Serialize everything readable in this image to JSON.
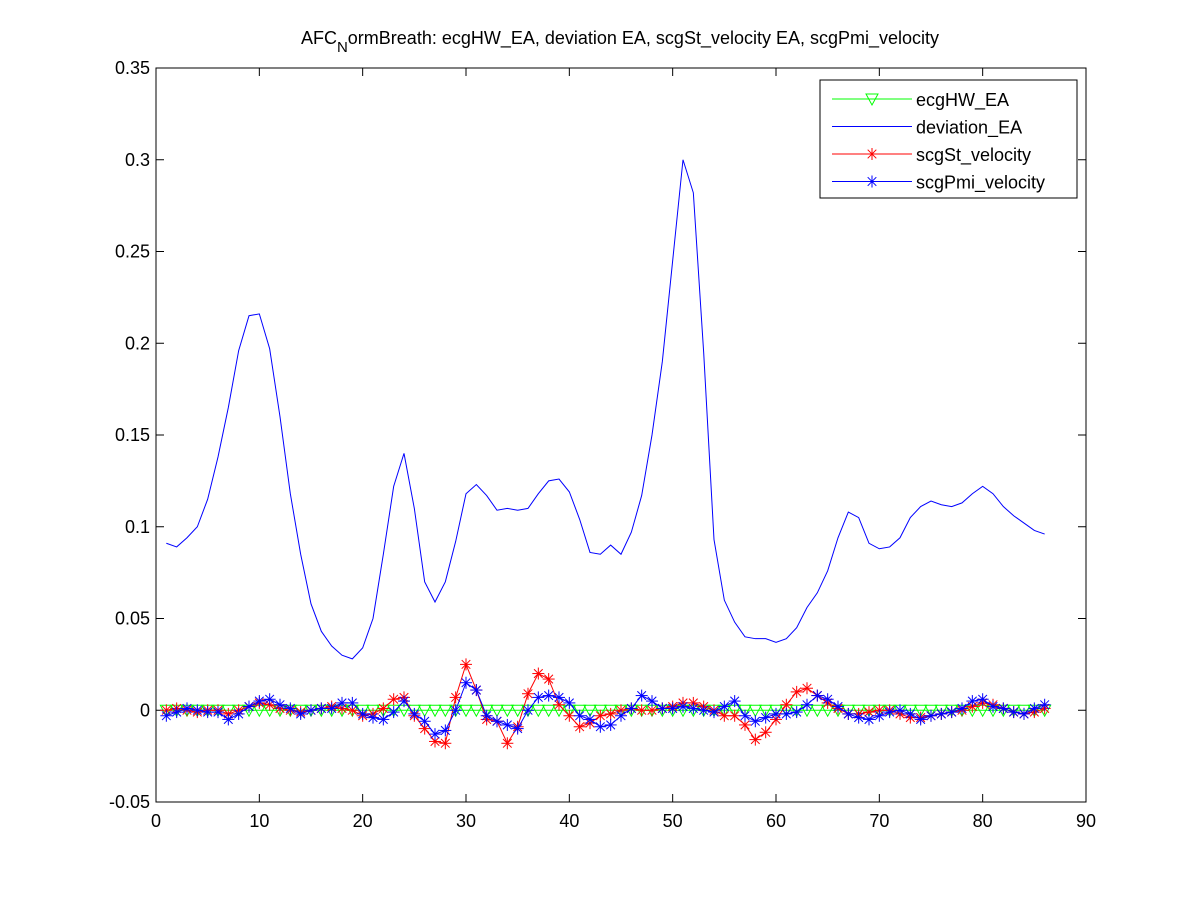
{
  "chart_data": {
    "type": "line",
    "title": {
      "prefix": "AFC",
      "subscript": "N",
      "suffix": "ormBreath: ecgHW_EA, deviation EA, scgSt_velocity EA, scgPmi_velocity"
    },
    "xlabel": "",
    "ylabel": "",
    "xlim": [
      0,
      90
    ],
    "ylim": [
      -0.05,
      0.35
    ],
    "xticks": [
      "0",
      "10",
      "20",
      "30",
      "40",
      "50",
      "60",
      "70",
      "80",
      "90"
    ],
    "yticks": [
      "-0.05",
      "0",
      "0.05",
      "0.1",
      "0.15",
      "0.2",
      "0.25",
      "0.3",
      "0.35"
    ],
    "legend_position": "top-right",
    "x": [
      1,
      2,
      3,
      4,
      5,
      6,
      7,
      8,
      9,
      10,
      11,
      12,
      13,
      14,
      15,
      16,
      17,
      18,
      19,
      20,
      21,
      22,
      23,
      24,
      25,
      26,
      27,
      28,
      29,
      30,
      31,
      32,
      33,
      34,
      35,
      36,
      37,
      38,
      39,
      40,
      41,
      42,
      43,
      44,
      45,
      46,
      47,
      48,
      49,
      50,
      51,
      52,
      53,
      54,
      55,
      56,
      57,
      58,
      59,
      60,
      61,
      62,
      63,
      64,
      65,
      66,
      67,
      68,
      69,
      70,
      71,
      72,
      73,
      74,
      75,
      76,
      77,
      78,
      79,
      80,
      81,
      82,
      83,
      84,
      85,
      86
    ],
    "series": [
      {
        "name": "ecgHW_EA",
        "color": "#00ff00",
        "marker": "triangle-down",
        "values": [
          0,
          0,
          0,
          0,
          0,
          0,
          0,
          0,
          0,
          0,
          0,
          0,
          0,
          0,
          0,
          0,
          0,
          0,
          0,
          0,
          0,
          0,
          0,
          0,
          0,
          0,
          0,
          0,
          0,
          0,
          0,
          0,
          0,
          0,
          0,
          0,
          0,
          0,
          0,
          0,
          0,
          0,
          0,
          0,
          0,
          0,
          0,
          0,
          0,
          0,
          0,
          0,
          0,
          0,
          0,
          0,
          0,
          0,
          0,
          0,
          0,
          0,
          0,
          0,
          0,
          0,
          0,
          0,
          0,
          0,
          0,
          0,
          0,
          0,
          0,
          0,
          0,
          0,
          0,
          0,
          0,
          0,
          0,
          0,
          0,
          0
        ]
      },
      {
        "name": "deviation_EA",
        "color": "#0000ff",
        "marker": "none",
        "values": [
          0.091,
          0.089,
          0.094,
          0.1,
          0.115,
          0.138,
          0.165,
          0.196,
          0.215,
          0.216,
          0.197,
          0.16,
          0.118,
          0.085,
          0.058,
          0.043,
          0.035,
          0.03,
          0.028,
          0.034,
          0.05,
          0.085,
          0.122,
          0.14,
          0.11,
          0.07,
          0.059,
          0.07,
          0.092,
          0.118,
          0.123,
          0.117,
          0.109,
          0.11,
          0.109,
          0.11,
          0.118,
          0.125,
          0.126,
          0.119,
          0.104,
          0.086,
          0.085,
          0.09,
          0.085,
          0.097,
          0.117,
          0.15,
          0.19,
          0.245,
          0.3,
          0.282,
          0.195,
          0.093,
          0.06,
          0.048,
          0.04,
          0.039,
          0.039,
          0.037,
          0.039,
          0.045,
          0.056,
          0.064,
          0.076,
          0.094,
          0.108,
          0.105,
          0.091,
          0.088,
          0.089,
          0.094,
          0.105,
          0.111,
          0.114,
          0.112,
          0.111,
          0.113,
          0.118,
          0.122,
          0.118,
          0.111,
          0.106,
          0.102,
          0.098,
          0.096
        ]
      },
      {
        "name": "scgSt_velocity",
        "color": "#ff0000",
        "marker": "asterisk",
        "values": [
          0,
          0.001,
          0,
          -0.001,
          0,
          0,
          -0.002,
          0,
          0.002,
          0.004,
          0.003,
          0.001,
          0,
          -0.001,
          0,
          0.001,
          0.002,
          0.001,
          0,
          -0.003,
          -0.002,
          0.001,
          0.006,
          0.007,
          -0.003,
          -0.01,
          -0.017,
          -0.018,
          0.007,
          0.025,
          0.011,
          -0.005,
          -0.006,
          -0.018,
          -0.009,
          0.009,
          0.02,
          0.017,
          0.003,
          -0.003,
          -0.009,
          -0.007,
          -0.003,
          -0.002,
          0,
          0.001,
          0,
          0,
          0.001,
          0.002,
          0.004,
          0.004,
          0.002,
          0,
          -0.003,
          -0.003,
          -0.008,
          -0.016,
          -0.012,
          -0.005,
          0.003,
          0.01,
          0.012,
          0.008,
          0.004,
          0.001,
          -0.002,
          -0.002,
          -0.001,
          0,
          0,
          -0.002,
          -0.004,
          -0.004,
          -0.003,
          -0.002,
          -0.001,
          0,
          0.002,
          0.004,
          0.003,
          0.001,
          -0.001,
          -0.002,
          -0.001,
          0.001
        ]
      },
      {
        "name": "scgPmi_velocity",
        "color": "#0000ff",
        "marker": "asterisk",
        "values": [
          -0.003,
          -0.001,
          0.001,
          0,
          -0.001,
          -0.001,
          -0.005,
          -0.002,
          0.002,
          0.005,
          0.006,
          0.003,
          0.001,
          -0.002,
          0,
          0.001,
          0.001,
          0.004,
          0.004,
          -0.002,
          -0.004,
          -0.005,
          -0.001,
          0.005,
          -0.002,
          -0.006,
          -0.013,
          -0.011,
          0,
          0.015,
          0.011,
          -0.003,
          -0.006,
          -0.008,
          -0.01,
          0,
          0.007,
          0.008,
          0.007,
          0.004,
          -0.003,
          -0.005,
          -0.009,
          -0.008,
          -0.003,
          0.001,
          0.008,
          0.005,
          0.001,
          0.001,
          0.002,
          0.001,
          0,
          -0.001,
          0.002,
          0.005,
          -0.003,
          -0.006,
          -0.004,
          -0.002,
          -0.002,
          -0.001,
          0.003,
          0.008,
          0.006,
          0.002,
          -0.002,
          -0.004,
          -0.005,
          -0.003,
          -0.001,
          0,
          -0.002,
          -0.005,
          -0.003,
          -0.002,
          -0.001,
          0.001,
          0.005,
          0.006,
          0.002,
          0.001,
          -0.001,
          -0.002,
          0.001,
          0.003
        ]
      }
    ]
  }
}
